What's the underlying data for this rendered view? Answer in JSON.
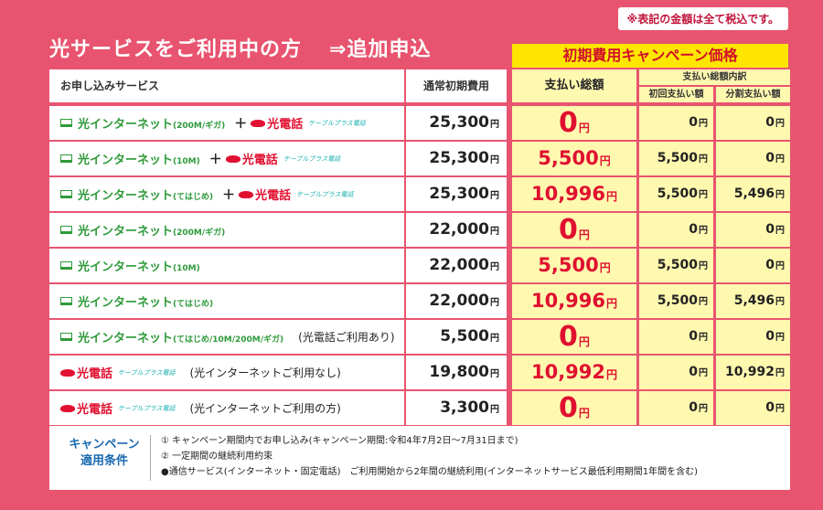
{
  "tax_note": "※表記の金額は全て税込です。",
  "headline": {
    "main": "光サービスをご利用中の方",
    "sub": "⇒追加申込"
  },
  "campaign_banner": "初期費用キャンペーン価格",
  "headers": {
    "service": "お申し込みサービス",
    "standard_fee": "通常初期費用",
    "total": "支払い総額",
    "breakdown": "支払い総額内訳",
    "first_payment": "初回支払い額",
    "installment": "分割支払い額"
  },
  "yen": "円",
  "rows": [
    {
      "internet": "光インターネット",
      "internet_note": "(200M/ギガ)",
      "plus": "＋",
      "phone": "光電話",
      "cable": "ケーブルプラス電話",
      "paren": "",
      "standard": "25,300",
      "total": "0",
      "first": "0",
      "installment": "0"
    },
    {
      "internet": "光インターネット",
      "internet_note": "(10M)",
      "plus": "＋",
      "phone": "光電話",
      "cable": "ケーブルプラス電話",
      "paren": "",
      "standard": "25,300",
      "total": "5,500",
      "first": "5,500",
      "installment": "0"
    },
    {
      "internet": "光インターネット",
      "internet_note": "(てはじめ)",
      "plus": "＋",
      "phone": "光電話",
      "cable": "ケーブルプラス電話",
      "paren": "",
      "standard": "25,300",
      "total": "10,996",
      "first": "5,500",
      "installment": "5,496"
    },
    {
      "internet": "光インターネット",
      "internet_note": "(200M/ギガ)",
      "plus": "",
      "phone": "",
      "cable": "",
      "paren": "",
      "standard": "22,000",
      "total": "0",
      "first": "0",
      "installment": "0"
    },
    {
      "internet": "光インターネット",
      "internet_note": "(10M)",
      "plus": "",
      "phone": "",
      "cable": "",
      "paren": "",
      "standard": "22,000",
      "total": "5,500",
      "first": "5,500",
      "installment": "0"
    },
    {
      "internet": "光インターネット",
      "internet_note": "(てはじめ)",
      "plus": "",
      "phone": "",
      "cable": "",
      "paren": "",
      "standard": "22,000",
      "total": "10,996",
      "first": "5,500",
      "installment": "5,496"
    },
    {
      "internet": "光インターネット",
      "internet_note": "(てはじめ/10M/200M/ギガ)",
      "plus": "",
      "phone": "",
      "cable": "",
      "paren": "(光電話ご利用あり)",
      "standard": "5,500",
      "total": "0",
      "first": "0",
      "installment": "0"
    },
    {
      "internet": "",
      "internet_note": "",
      "plus": "",
      "phone": "光電話",
      "cable": "ケーブルプラス電話",
      "paren": "(光インターネットご利用なし)",
      "standard": "19,800",
      "total": "10,992",
      "first": "0",
      "installment": "10,992"
    },
    {
      "internet": "",
      "internet_note": "",
      "plus": "",
      "phone": "光電話",
      "cable": "ケーブルプラス電話",
      "paren": "(光インターネットご利用の方)",
      "standard": "3,300",
      "total": "0",
      "first": "0",
      "installment": "0"
    }
  ],
  "conditions": {
    "title_1": "キャンペーン",
    "title_2": "適用条件",
    "line_1": "① キャンペーン期間内でお申し込み(キャンペーン期間:令和4年7月2日〜7月31日まで)",
    "line_2": "② 一定期間の継続利用約束",
    "line_3": "●通信サービス(インターネット・固定電話)　ご利用開始から2年間の継続利用(インターネットサービス最低利用期間1年間を含む)"
  },
  "colors": {
    "background": "#e8546f",
    "accent_red": "#e01030",
    "highlight_yellow": "#fff9b0",
    "internet_green": "#2e9a3a"
  }
}
